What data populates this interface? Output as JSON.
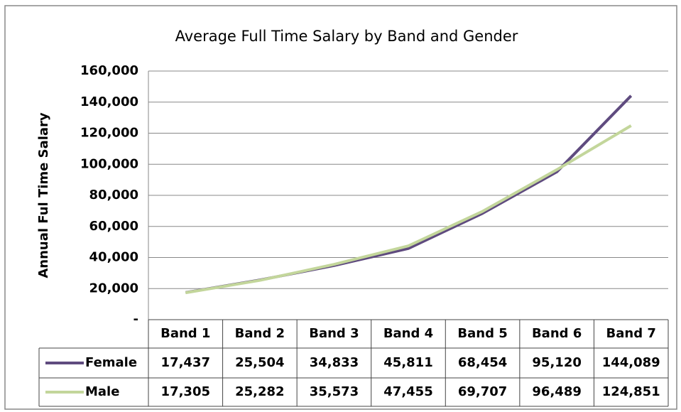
{
  "chart_data": {
    "type": "line",
    "title": "Average Full Time Salary by Band and Gender",
    "y_label": "Annual Ful Time Salary",
    "categories": [
      "Band 1",
      "Band 2",
      "Band 3",
      "Band 4",
      "Band 5",
      "Band 6",
      "Band 7"
    ],
    "series": [
      {
        "name": "Female",
        "color": "#5f4b7f",
        "values": [
          17437,
          25504,
          34833,
          45811,
          68454,
          95120,
          144089
        ],
        "value_labels": [
          "17,437",
          "25,504",
          "34,833",
          "45,811",
          "68,454",
          "95,120",
          "144,089"
        ]
      },
      {
        "name": "Male",
        "color": "#c3d69b",
        "values": [
          17305,
          25282,
          35573,
          47455,
          69707,
          96489,
          124851
        ],
        "value_labels": [
          "17,305",
          "25,282",
          "35,573",
          "47,455",
          "69,707",
          "96,489",
          "124,851"
        ]
      }
    ],
    "ylim": [
      0,
      160000
    ],
    "yticks": [
      {
        "value": 0,
        "label": "-"
      },
      {
        "value": 20000,
        "label": "20,000"
      },
      {
        "value": 40000,
        "label": "40,000"
      },
      {
        "value": 60000,
        "label": "60,000"
      },
      {
        "value": 80000,
        "label": "80,000"
      },
      {
        "value": 100000,
        "label": "100,000"
      },
      {
        "value": 120000,
        "label": "120,000"
      },
      {
        "value": 140000,
        "label": "140,000"
      },
      {
        "value": 160000,
        "label": "160,000"
      }
    ],
    "grid": true
  }
}
